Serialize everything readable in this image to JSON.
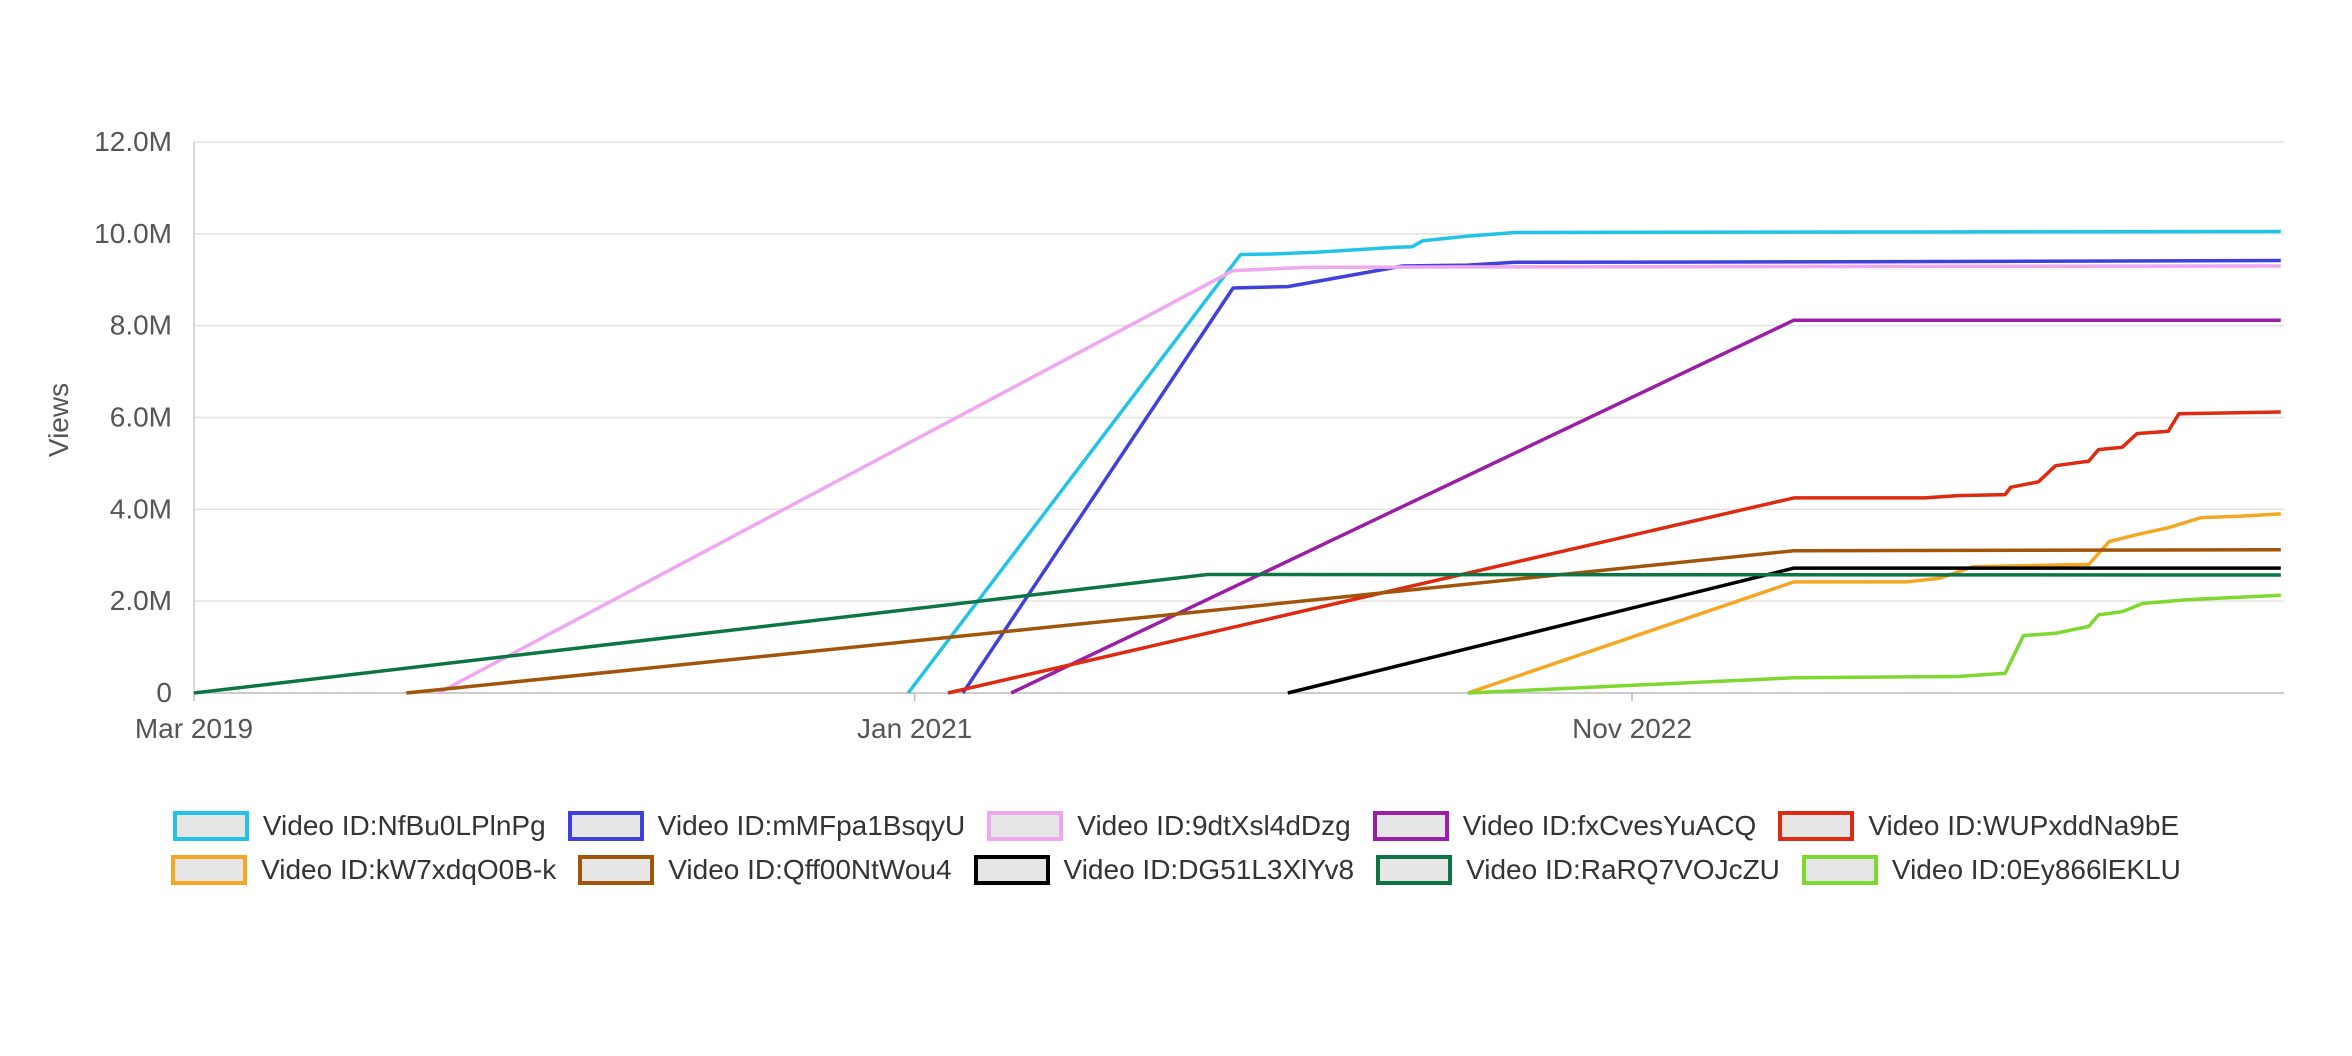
{
  "chart_data": {
    "type": "line",
    "ylabel": "Views",
    "xlabel": "",
    "x_ticks": [
      "Mar 2019",
      "Jan 2021",
      "Nov 2022"
    ],
    "x_range": [
      "2019-03-01",
      "2024-07-01"
    ],
    "y_ticks": [
      "0",
      "2.0M",
      "4.0M",
      "6.0M",
      "8.0M",
      "10.0M",
      "12.0M"
    ],
    "y_range": [
      0,
      12000000
    ],
    "grid": "horizontal",
    "legend_position": "bottom",
    "series": [
      {
        "name": "Video ID:NfBu0LPlnPg",
        "color": "#22c3e6",
        "points": [
          [
            "2020-12-26",
            0
          ],
          [
            "2021-11-01",
            9550000
          ],
          [
            "2021-12-01",
            9560000
          ],
          [
            "2022-01-10",
            9600000
          ],
          [
            "2022-02-15",
            9650000
          ],
          [
            "2022-03-20",
            9700000
          ],
          [
            "2022-04-10",
            9720000
          ],
          [
            "2022-04-20",
            9850000
          ],
          [
            "2022-06-01",
            9950000
          ],
          [
            "2022-07-15",
            10030000
          ],
          [
            "2023-06-01",
            10040000
          ],
          [
            "2024-06-28",
            10050000
          ]
        ]
      },
      {
        "name": "Video ID:mMFpa1BsqyU",
        "color": "#4040dd",
        "points": [
          [
            "2021-02-15",
            0
          ],
          [
            "2021-10-25",
            8820000
          ],
          [
            "2021-12-15",
            8850000
          ],
          [
            "2022-04-01",
            9300000
          ],
          [
            "2022-06-01",
            9320000
          ],
          [
            "2022-07-15",
            9380000
          ],
          [
            "2023-06-01",
            9390000
          ],
          [
            "2024-06-28",
            9420000
          ]
        ]
      },
      {
        "name": "Video ID:9dtXsl4dDzg",
        "color": "#eea8f0",
        "points": [
          [
            "2019-10-15",
            0
          ],
          [
            "2021-10-25",
            9200000
          ],
          [
            "2022-01-01",
            9270000
          ],
          [
            "2022-06-01",
            9280000
          ],
          [
            "2024-06-28",
            9300000
          ]
        ]
      },
      {
        "name": "Video ID:fxCvesYuACQ",
        "color": "#9c1ea8",
        "points": [
          [
            "2021-04-01",
            0
          ],
          [
            "2023-04-01",
            8120000
          ],
          [
            "2024-06-28",
            8120000
          ]
        ]
      },
      {
        "name": "Video ID:WUPxddNa9bE",
        "color": "#dd2a10",
        "points": [
          [
            "2021-02-01",
            0
          ],
          [
            "2023-04-01",
            4250000
          ],
          [
            "2023-08-01",
            4250000
          ],
          [
            "2023-09-01",
            4300000
          ],
          [
            "2023-10-15",
            4320000
          ],
          [
            "2023-10-20",
            4480000
          ],
          [
            "2023-11-15",
            4600000
          ],
          [
            "2023-12-01",
            4950000
          ],
          [
            "2024-01-01",
            5050000
          ],
          [
            "2024-01-10",
            5300000
          ],
          [
            "2024-02-01",
            5350000
          ],
          [
            "2024-02-15",
            5650000
          ],
          [
            "2024-03-15",
            5700000
          ],
          [
            "2024-03-25",
            6080000
          ],
          [
            "2024-06-28",
            6120000
          ]
        ]
      },
      {
        "name": "Video ID:kW7xdqO0B-k",
        "color": "#f5a623",
        "points": [
          [
            "2022-06-01",
            0
          ],
          [
            "2023-04-01",
            2420000
          ],
          [
            "2023-07-15",
            2420000
          ],
          [
            "2023-08-15",
            2500000
          ],
          [
            "2023-09-15",
            2750000
          ],
          [
            "2024-01-01",
            2800000
          ],
          [
            "2024-01-20",
            3300000
          ],
          [
            "2024-02-15",
            3450000
          ],
          [
            "2024-03-15",
            3600000
          ],
          [
            "2024-04-15",
            3820000
          ],
          [
            "2024-05-20",
            3850000
          ],
          [
            "2024-06-28",
            3900000
          ]
        ]
      },
      {
        "name": "Video ID:Qff00NtWou4",
        "color": "#a0550a",
        "points": [
          [
            "2019-09-15",
            0
          ],
          [
            "2023-04-01",
            3100000
          ],
          [
            "2024-06-28",
            3120000
          ]
        ]
      },
      {
        "name": "Video ID:DG51L3XlYv8",
        "color": "#000000",
        "points": [
          [
            "2021-12-15",
            0
          ],
          [
            "2023-04-01",
            2720000
          ],
          [
            "2024-06-28",
            2720000
          ]
        ]
      },
      {
        "name": "Video ID:RaRQ7VOJcZU",
        "color": "#0c7544",
        "points": [
          [
            "2019-03-01",
            0
          ],
          [
            "2021-10-01",
            2580000
          ],
          [
            "2024-06-28",
            2570000
          ]
        ]
      },
      {
        "name": "Video ID:0Ey866lEKLU",
        "color": "#7dd830",
        "points": [
          [
            "2022-06-01",
            0
          ],
          [
            "2023-04-01",
            330000
          ],
          [
            "2023-09-01",
            360000
          ],
          [
            "2023-10-15",
            430000
          ],
          [
            "2023-11-01",
            1250000
          ],
          [
            "2023-12-01",
            1300000
          ],
          [
            "2024-01-01",
            1450000
          ],
          [
            "2024-01-10",
            1700000
          ],
          [
            "2024-02-01",
            1770000
          ],
          [
            "2024-02-20",
            1950000
          ],
          [
            "2024-04-01",
            2030000
          ],
          [
            "2024-06-28",
            2130000
          ]
        ]
      }
    ]
  }
}
